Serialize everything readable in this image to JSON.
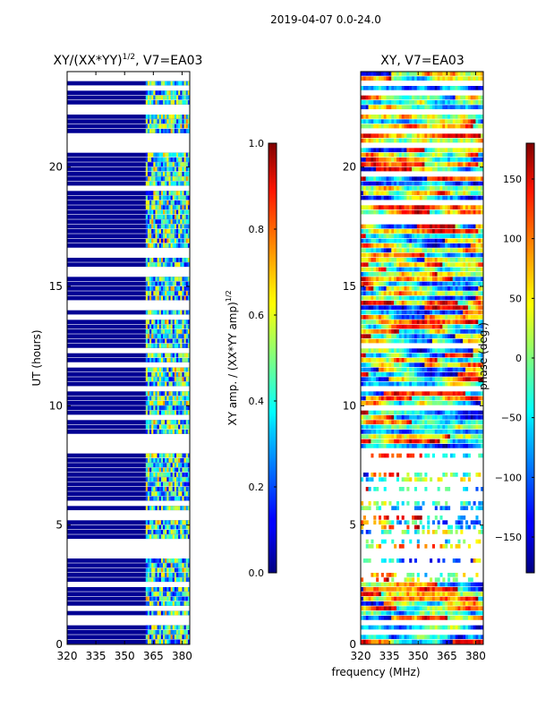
{
  "suptitle": "2019-04-07 0.0-24.0",
  "chart_data": [
    {
      "type": "heatmap",
      "title": "XY/(XX*YY)",
      "title_exp": "1/2",
      "title_suffix": ", V7=EA03",
      "xlabel": "",
      "ylabel": "UT (hours)",
      "xlim": [
        320,
        384
      ],
      "ylim": [
        0,
        24
      ],
      "xticks": [
        "320",
        "335",
        "350",
        "365",
        "380"
      ],
      "xtick_values": [
        320,
        335,
        350,
        365,
        380
      ],
      "yticks": [
        "0",
        "5",
        "10",
        "15",
        "20"
      ],
      "ytick_values": [
        0,
        5,
        10,
        15,
        20
      ],
      "colormap": "jet",
      "value_range": [
        0.0,
        1.0
      ],
      "blank_bands_hours": [
        [
          23.6,
          24.0
        ],
        [
          22.2,
          22.4
        ],
        [
          20.6,
          20.9
        ],
        [
          16.2,
          16.5
        ],
        [
          15.5,
          15.8
        ],
        [
          14.0,
          14.3
        ],
        [
          9.3,
          9.6
        ],
        [
          8.2,
          8.8
        ],
        [
          5.2,
          5.5
        ],
        [
          3.6,
          4.4
        ],
        [
          2.5,
          2.7
        ]
      ],
      "colorbar": {
        "label": "XY amp. / (XX*YY amp)",
        "label_exp": "1/2",
        "ticks": [
          "0.0",
          "0.2",
          "0.4",
          "0.6",
          "0.8",
          "1.0"
        ],
        "tick_values": [
          0.0,
          0.2,
          0.4,
          0.6,
          0.8,
          1.0
        ],
        "range": [
          0.0,
          1.0
        ]
      }
    },
    {
      "type": "heatmap",
      "title": "XY, V7=EA03",
      "xlabel": "frequency (MHz)",
      "ylabel": "",
      "xlim": [
        320,
        384
      ],
      "ylim": [
        0,
        24
      ],
      "xticks": [
        "320",
        "335",
        "350",
        "365",
        "380"
      ],
      "xtick_values": [
        320,
        335,
        350,
        365,
        380
      ],
      "yticks": [
        "0",
        "5",
        "10",
        "15",
        "20"
      ],
      "ytick_values": [
        0,
        5,
        10,
        15,
        20
      ],
      "colormap": "jet",
      "value_range": [
        -180,
        180
      ],
      "colorbar": {
        "label": "phase (deg.)",
        "ticks": [
          "−150",
          "−100",
          "−50",
          "0",
          "50",
          "100",
          "150"
        ],
        "tick_values": [
          -150,
          -100,
          -50,
          0,
          50,
          100,
          150
        ],
        "range": [
          -180,
          180
        ]
      }
    }
  ]
}
